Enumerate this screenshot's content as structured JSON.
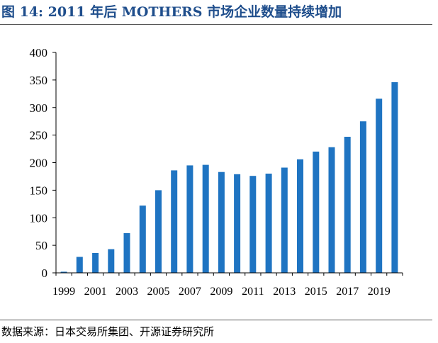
{
  "title": "图 14:  2011 年后 MOTHERS 市场企业数量持续增加",
  "source": "数据来源：日本交易所集团、开源证券研究所",
  "colors": {
    "bar": "#1f74c2",
    "title": "#1f4e8c"
  },
  "chart_data": {
    "type": "bar",
    "title": "",
    "xlabel": "",
    "ylabel": "",
    "ylim": [
      0,
      400
    ],
    "yticks": [
      0,
      50,
      100,
      150,
      200,
      250,
      300,
      350,
      400
    ],
    "grid": false,
    "categories": [
      "1999",
      "2000",
      "2001",
      "2002",
      "2003",
      "2004",
      "2005",
      "2006",
      "2007",
      "2008",
      "2009",
      "2010",
      "2011",
      "2012",
      "2013",
      "2014",
      "2015",
      "2016",
      "2017",
      "2018",
      "2019",
      "2020"
    ],
    "x_tick_labels": [
      "1999",
      "2001",
      "2003",
      "2005",
      "2007",
      "2009",
      "2011",
      "2013",
      "2015",
      "2017",
      "2019"
    ],
    "values": [
      2,
      29,
      36,
      43,
      72,
      122,
      150,
      186,
      195,
      196,
      183,
      179,
      176,
      180,
      191,
      206,
      220,
      228,
      247,
      275,
      316,
      346
    ]
  }
}
